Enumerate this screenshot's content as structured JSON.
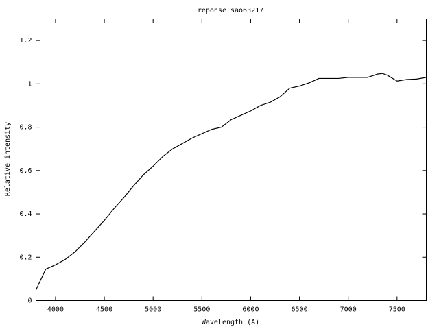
{
  "chart_data": {
    "type": "line",
    "title": "reponse_sao63217",
    "x_label": "Wavelength (A)",
    "y_label": "Relative intensity",
    "x": [
      3800,
      3900,
      4000,
      4100,
      4200,
      4300,
      4400,
      4500,
      4600,
      4700,
      4800,
      4900,
      5000,
      5100,
      5200,
      5300,
      5400,
      5500,
      5600,
      5700,
      5800,
      5900,
      6000,
      6100,
      6200,
      6300,
      6400,
      6500,
      6600,
      6700,
      6800,
      6900,
      7000,
      7100,
      7200,
      7300,
      7350,
      7400,
      7500,
      7600,
      7700,
      7800
    ],
    "values": [
      0.05,
      0.145,
      0.165,
      0.19,
      0.225,
      0.27,
      0.32,
      0.37,
      0.425,
      0.475,
      0.53,
      0.58,
      0.62,
      0.665,
      0.7,
      0.725,
      0.75,
      0.77,
      0.79,
      0.8,
      0.835,
      0.855,
      0.875,
      0.9,
      0.915,
      0.94,
      0.98,
      0.99,
      1.005,
      1.025,
      1.025,
      1.025,
      1.03,
      1.03,
      1.03,
      1.045,
      1.048,
      1.04,
      1.013,
      1.02,
      1.022,
      1.03
    ],
    "color": "#000000",
    "xlim": [
      3800,
      7800
    ],
    "xticks": [
      4000,
      4500,
      5000,
      5500,
      6000,
      6500,
      7000,
      7500
    ],
    "ylim": [
      0,
      1.3
    ],
    "yticks": [
      0,
      0.2,
      0.4,
      0.6,
      0.8,
      1,
      1.2
    ],
    "grid": false
  }
}
